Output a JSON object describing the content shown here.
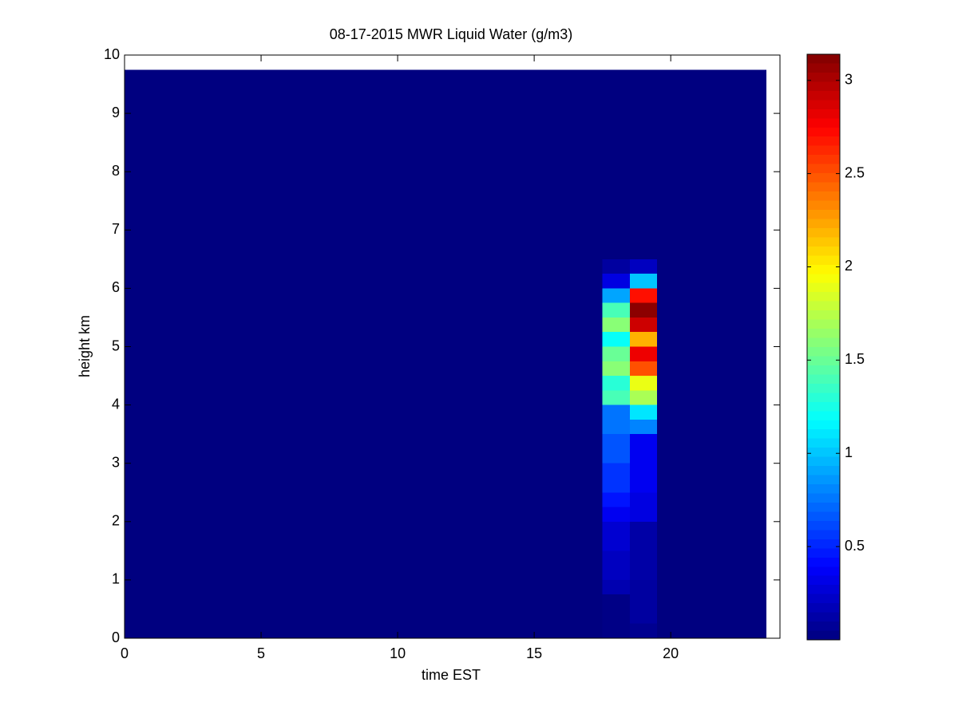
{
  "chart_data": {
    "type": "heatmap",
    "title": "08-17-2015 MWR Liquid Water (g/m3)",
    "xlabel": "time EST",
    "ylabel": "height km",
    "colormap": "jet",
    "x_edges": [
      0,
      17.5,
      18.5,
      19.5,
      23.5
    ],
    "y_edges": [
      0,
      0.25,
      0.5,
      0.75,
      1,
      1.25,
      1.5,
      1.75,
      2,
      2.25,
      2.5,
      2.75,
      3,
      3.25,
      3.5,
      3.75,
      4,
      4.25,
      4.5,
      4.75,
      5,
      5.25,
      5.5,
      5.75,
      6,
      6.25,
      6.5,
      9.75
    ],
    "values": [
      [
        0,
        0.02,
        0.05,
        0
      ],
      [
        0,
        0.02,
        0.1,
        0
      ],
      [
        0,
        0.02,
        0.1,
        0
      ],
      [
        0,
        0.15,
        0.1,
        0
      ],
      [
        0,
        0.2,
        0.12,
        0
      ],
      [
        0,
        0.2,
        0.12,
        0
      ],
      [
        0,
        0.25,
        0.12,
        0
      ],
      [
        0,
        0.25,
        0.12,
        0
      ],
      [
        0,
        0.35,
        0.3,
        0
      ],
      [
        0,
        0.45,
        0.3,
        0
      ],
      [
        0,
        0.55,
        0.35,
        0
      ],
      [
        0,
        0.55,
        0.35,
        0
      ],
      [
        0,
        0.65,
        0.35,
        0
      ],
      [
        0,
        0.65,
        0.35,
        0
      ],
      [
        0,
        0.75,
        0.8,
        0
      ],
      [
        0,
        0.75,
        1.1,
        0
      ],
      [
        0,
        1.4,
        1.7,
        0
      ],
      [
        0,
        1.3,
        1.9,
        0
      ],
      [
        0,
        1.6,
        2.5,
        0
      ],
      [
        0,
        1.5,
        2.8,
        0
      ],
      [
        0,
        1.2,
        2.2,
        0
      ],
      [
        0,
        1.6,
        2.9,
        0
      ],
      [
        0,
        1.4,
        3.1,
        0
      ],
      [
        0,
        0.9,
        2.7,
        0
      ],
      [
        0,
        0.3,
        1.0,
        0
      ],
      [
        0,
        0.1,
        0.2,
        0
      ],
      [
        0,
        0,
        0,
        0
      ]
    ],
    "xlim": [
      0,
      24
    ],
    "xticks": [
      0,
      5,
      10,
      15,
      20
    ],
    "ylim": [
      0,
      10
    ],
    "yticks": [
      0,
      1,
      2,
      3,
      4,
      5,
      6,
      7,
      8,
      9,
      10
    ],
    "clim": [
      0,
      3.14
    ],
    "cticks": [
      0.5,
      1,
      1.5,
      2,
      2.5,
      3
    ]
  }
}
